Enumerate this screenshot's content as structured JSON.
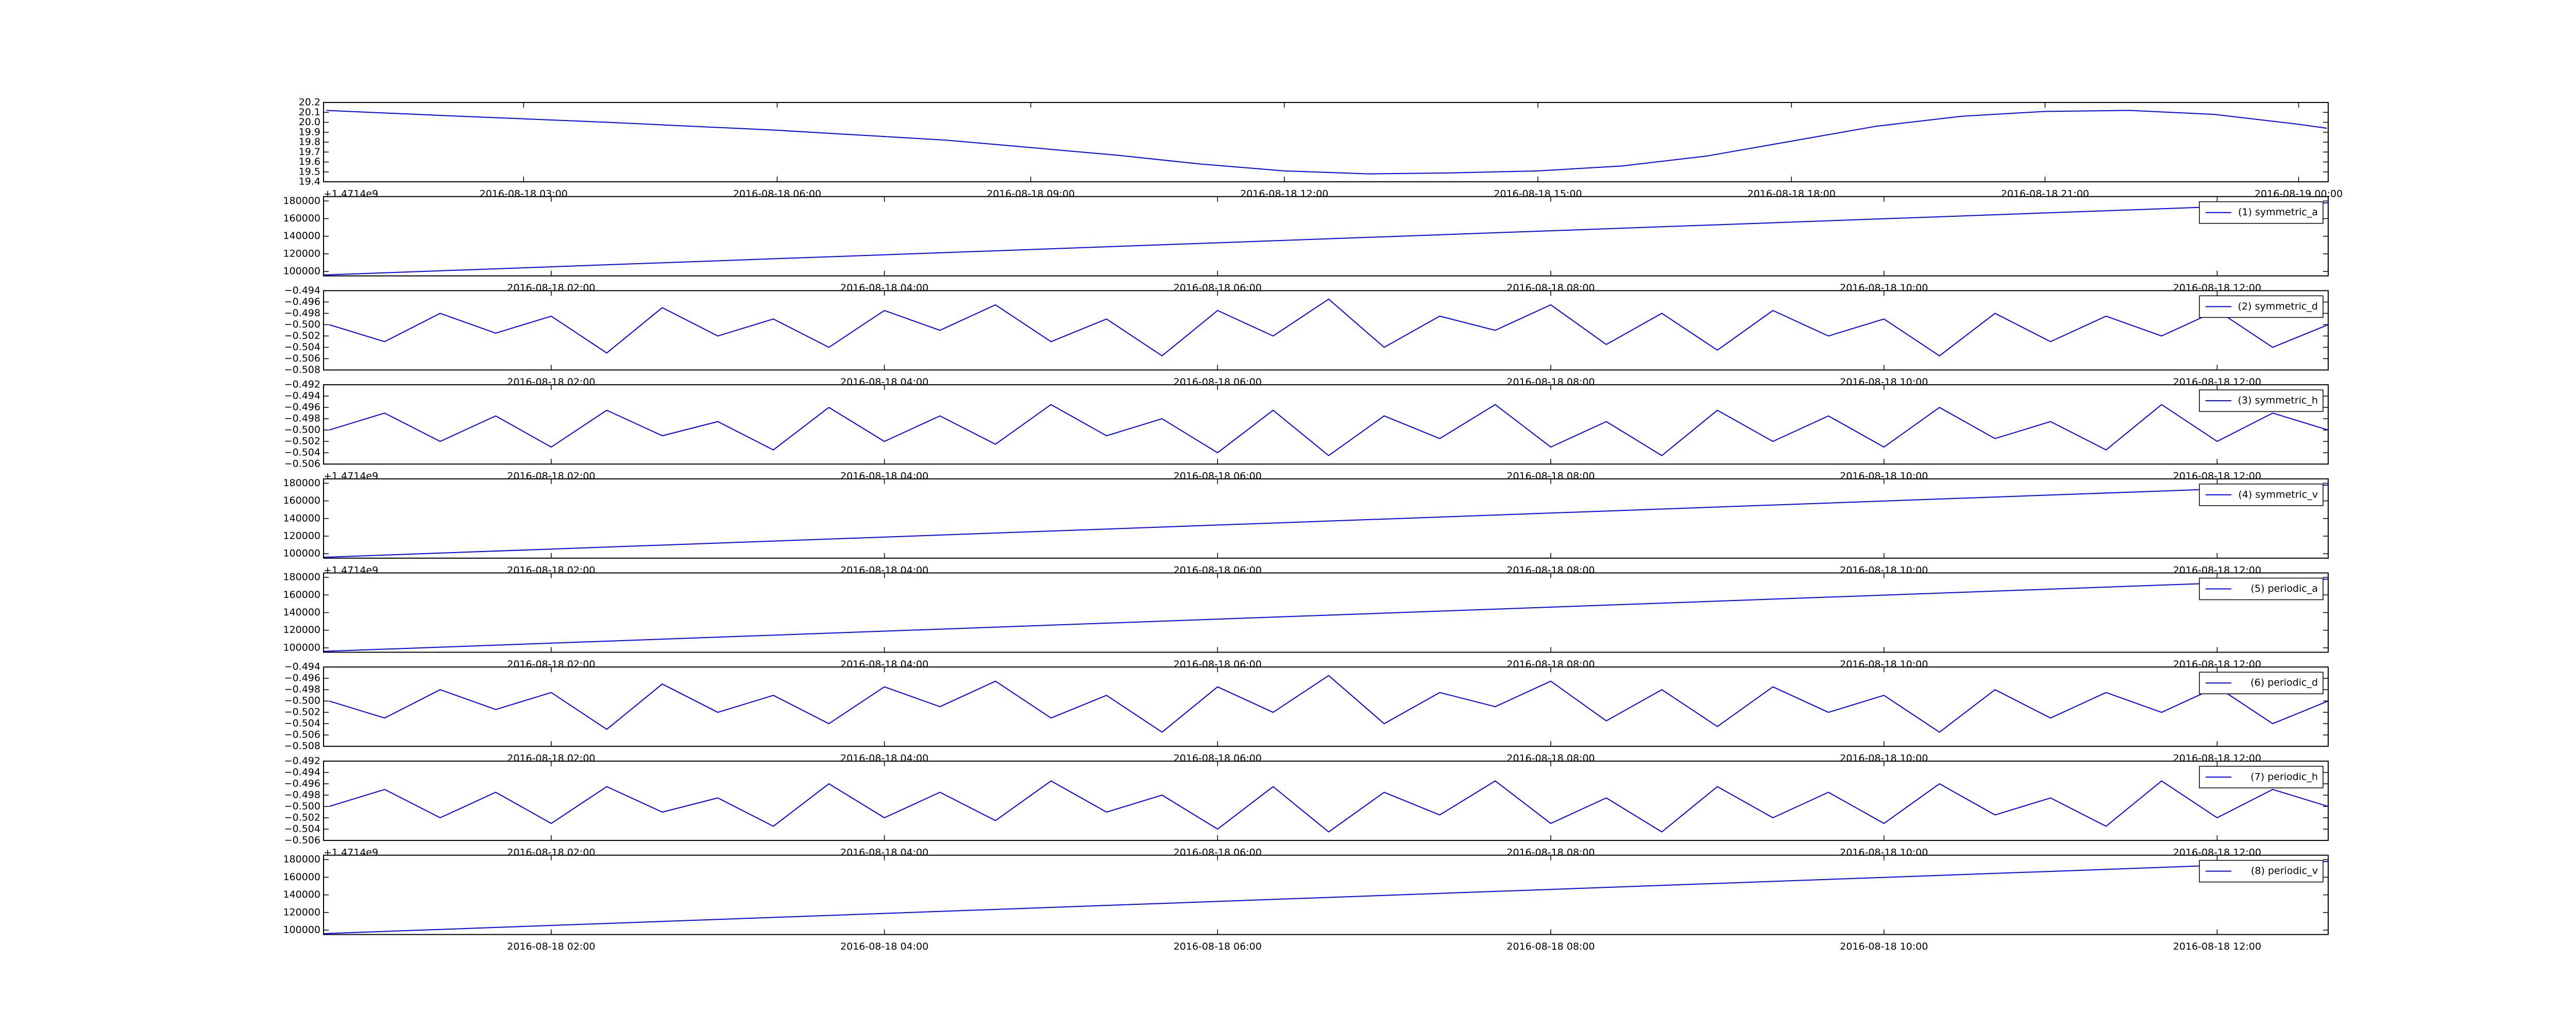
{
  "chart_data": [
    {
      "type": "line",
      "xlim": [
        "2016-08-18 00:38",
        "2016-08-19 00:21"
      ],
      "ylim": [
        19.4,
        20.2
      ],
      "yticks": [
        19.4,
        19.5,
        19.6,
        19.7,
        19.8,
        19.9,
        {
          "value": 20,
          "label": "20.0"
        },
        20.1,
        20.2
      ],
      "xticks": [
        "2016-08-18 03:00",
        "2016-08-18 06:00",
        "2016-08-18 09:00",
        "2016-08-18 12:00",
        "2016-08-18 15:00",
        "2016-08-18 18:00",
        "2016-08-18 21:00",
        "2016-08-19 00:00"
      ],
      "offset_text": "+1.4714e9",
      "series": [
        {
          "color": "#0000ff",
          "x": [
            "2016-08-18 00:40",
            "2016-08-18 02:00",
            "2016-08-18 04:00",
            "2016-08-18 06:00",
            "2016-08-18 08:00",
            "2016-08-18 10:00",
            "2016-08-18 11:00",
            "2016-08-18 12:00",
            "2016-08-18 13:00",
            "2016-08-18 14:00",
            "2016-08-18 15:00",
            "2016-08-18 16:00",
            "2016-08-18 17:00",
            "2016-08-18 18:00",
            "2016-08-18 19:00",
            "2016-08-18 20:00",
            "2016-08-18 21:00",
            "2016-08-18 22:00",
            "2016-08-18 23:00",
            "2016-08-19 00:00",
            "2016-08-19 00:20"
          ],
          "values": [
            20.12,
            20.07,
            20.0,
            19.92,
            19.82,
            19.67,
            19.58,
            19.51,
            19.48,
            19.49,
            19.51,
            19.56,
            19.66,
            19.81,
            19.96,
            20.06,
            20.11,
            20.12,
            20.08,
            19.98,
            19.94
          ]
        }
      ]
    },
    {
      "type": "line",
      "xlim": [
        "2016-08-18 00:38",
        "2016-08-18 12:40"
      ],
      "ylim": [
        95000,
        185000
      ],
      "yticks": [
        100000,
        120000,
        140000,
        160000,
        180000
      ],
      "xticks": [
        "2016-08-18 02:00",
        "2016-08-18 04:00",
        "2016-08-18 06:00",
        "2016-08-18 08:00",
        "2016-08-18 10:00",
        "2016-08-18 12:00"
      ],
      "legend": "upper right",
      "series": [
        {
          "name": "(1) symmetric_a",
          "color": "#0000ff",
          "x": [
            "2016-08-18 00:38",
            "2016-08-18 12:40"
          ],
          "values": [
            96000,
            178000
          ]
        }
      ]
    },
    {
      "type": "line",
      "xlim": [
        "2016-08-18 00:38",
        "2016-08-18 12:40"
      ],
      "ylim": [
        -0.508,
        -0.494
      ],
      "yticks": [
        {
          "value": -0.508,
          "label": "−0.508"
        },
        {
          "value": -0.506,
          "label": "−0.506"
        },
        {
          "value": -0.504,
          "label": "−0.504"
        },
        {
          "value": -0.502,
          "label": "−0.502"
        },
        {
          "value": -0.5,
          "label": "−0.500"
        },
        {
          "value": -0.498,
          "label": "−0.498"
        },
        {
          "value": -0.496,
          "label": "−0.496"
        },
        {
          "value": -0.494,
          "label": "−0.494"
        }
      ],
      "xticks": [
        "2016-08-18 02:00",
        "2016-08-18 04:00",
        "2016-08-18 06:00",
        "2016-08-18 08:00",
        "2016-08-18 10:00",
        "2016-08-18 12:00"
      ],
      "legend": "upper right",
      "series": [
        {
          "name": "(2) symmetric_d",
          "color": "#0000ff",
          "x": [
            "2016-08-18 00:40",
            "2016-08-18 01:00",
            "2016-08-18 01:20",
            "2016-08-18 01:40",
            "2016-08-18 02:00",
            "2016-08-18 02:20",
            "2016-08-18 02:40",
            "2016-08-18 03:00",
            "2016-08-18 03:20",
            "2016-08-18 03:40",
            "2016-08-18 04:00",
            "2016-08-18 04:20",
            "2016-08-18 04:40",
            "2016-08-18 05:00",
            "2016-08-18 05:20",
            "2016-08-18 05:40",
            "2016-08-18 06:00",
            "2016-08-18 06:20",
            "2016-08-18 06:40",
            "2016-08-18 07:00",
            "2016-08-18 07:20",
            "2016-08-18 07:40",
            "2016-08-18 08:00",
            "2016-08-18 08:20",
            "2016-08-18 08:40",
            "2016-08-18 09:00",
            "2016-08-18 09:20",
            "2016-08-18 09:40",
            "2016-08-18 10:00",
            "2016-08-18 10:20",
            "2016-08-18 10:40",
            "2016-08-18 11:00",
            "2016-08-18 11:20",
            "2016-08-18 11:40",
            "2016-08-18 12:00",
            "2016-08-18 12:20",
            "2016-08-18 12:40"
          ],
          "values": [
            -0.5,
            -0.503,
            -0.498,
            -0.5015,
            -0.4985,
            -0.505,
            -0.497,
            -0.502,
            -0.499,
            -0.504,
            -0.4975,
            -0.501,
            -0.4965,
            -0.503,
            -0.499,
            -0.5055,
            -0.4975,
            -0.502,
            -0.4955,
            -0.504,
            -0.4985,
            -0.501,
            -0.4965,
            -0.5035,
            -0.498,
            -0.5045,
            -0.4975,
            -0.502,
            -0.499,
            -0.5055,
            -0.498,
            -0.503,
            -0.4985,
            -0.502,
            -0.4975,
            -0.504,
            -0.5
          ]
        }
      ]
    },
    {
      "type": "line",
      "xlim": [
        "2016-08-18 00:38",
        "2016-08-18 12:40"
      ],
      "ylim": [
        -0.506,
        -0.492
      ],
      "yticks": [
        {
          "value": -0.506,
          "label": "−0.506"
        },
        {
          "value": -0.504,
          "label": "−0.504"
        },
        {
          "value": -0.502,
          "label": "−0.502"
        },
        {
          "value": -0.5,
          "label": "−0.500"
        },
        {
          "value": -0.498,
          "label": "−0.498"
        },
        {
          "value": -0.496,
          "label": "−0.496"
        },
        {
          "value": -0.494,
          "label": "−0.494"
        },
        {
          "value": -0.492,
          "label": "−0.492"
        }
      ],
      "xticks": [
        "2016-08-18 02:00",
        "2016-08-18 04:00",
        "2016-08-18 06:00",
        "2016-08-18 08:00",
        "2016-08-18 10:00",
        "2016-08-18 12:00"
      ],
      "legend": "upper right",
      "offset_text": "+1.4714e9",
      "series": [
        {
          "name": "(3) symmetric_h",
          "color": "#0000ff",
          "x": [
            "2016-08-18 00:40",
            "2016-08-18 01:00",
            "2016-08-18 01:20",
            "2016-08-18 01:40",
            "2016-08-18 02:00",
            "2016-08-18 02:20",
            "2016-08-18 02:40",
            "2016-08-18 03:00",
            "2016-08-18 03:20",
            "2016-08-18 03:40",
            "2016-08-18 04:00",
            "2016-08-18 04:20",
            "2016-08-18 04:40",
            "2016-08-18 05:00",
            "2016-08-18 05:20",
            "2016-08-18 05:40",
            "2016-08-18 06:00",
            "2016-08-18 06:20",
            "2016-08-18 06:40",
            "2016-08-18 07:00",
            "2016-08-18 07:20",
            "2016-08-18 07:40",
            "2016-08-18 08:00",
            "2016-08-18 08:20",
            "2016-08-18 08:40",
            "2016-08-18 09:00",
            "2016-08-18 09:20",
            "2016-08-18 09:40",
            "2016-08-18 10:00",
            "2016-08-18 10:20",
            "2016-08-18 10:40",
            "2016-08-18 11:00",
            "2016-08-18 11:20",
            "2016-08-18 11:40",
            "2016-08-18 12:00",
            "2016-08-18 12:20",
            "2016-08-18 12:40"
          ],
          "values": [
            -0.5,
            -0.497,
            -0.502,
            -0.4975,
            -0.503,
            -0.4965,
            -0.501,
            -0.4985,
            -0.5035,
            -0.496,
            -0.502,
            -0.4975,
            -0.5025,
            -0.4955,
            -0.501,
            -0.498,
            -0.504,
            -0.4965,
            -0.5045,
            -0.4975,
            -0.5015,
            -0.4955,
            -0.503,
            -0.4985,
            -0.5045,
            -0.4965,
            -0.502,
            -0.4975,
            -0.503,
            -0.496,
            -0.5015,
            -0.4985,
            -0.5035,
            -0.4955,
            -0.502,
            -0.497,
            -0.5
          ]
        }
      ]
    },
    {
      "type": "line",
      "xlim": [
        "2016-08-18 00:38",
        "2016-08-18 12:40"
      ],
      "ylim": [
        95000,
        185000
      ],
      "yticks": [
        100000,
        120000,
        140000,
        160000,
        180000
      ],
      "xticks": [
        "2016-08-18 02:00",
        "2016-08-18 04:00",
        "2016-08-18 06:00",
        "2016-08-18 08:00",
        "2016-08-18 10:00",
        "2016-08-18 12:00"
      ],
      "legend": "upper right",
      "offset_text": "+1.4714e9",
      "series": [
        {
          "name": "(4) symmetric_v",
          "color": "#0000ff",
          "x": [
            "2016-08-18 00:38",
            "2016-08-18 12:40"
          ],
          "values": [
            96000,
            178000
          ]
        }
      ]
    },
    {
      "type": "line",
      "xlim": [
        "2016-08-18 00:38",
        "2016-08-18 12:40"
      ],
      "ylim": [
        95000,
        185000
      ],
      "yticks": [
        100000,
        120000,
        140000,
        160000,
        180000
      ],
      "xticks": [
        "2016-08-18 02:00",
        "2016-08-18 04:00",
        "2016-08-18 06:00",
        "2016-08-18 08:00",
        "2016-08-18 10:00",
        "2016-08-18 12:00"
      ],
      "legend": "upper right",
      "series": [
        {
          "name": "(5) periodic_a",
          "color": "#0000ff",
          "x": [
            "2016-08-18 00:38",
            "2016-08-18 12:40"
          ],
          "values": [
            96000,
            178000
          ]
        }
      ]
    },
    {
      "type": "line",
      "xlim": [
        "2016-08-18 00:38",
        "2016-08-18 12:40"
      ],
      "ylim": [
        -0.508,
        -0.494
      ],
      "yticks": [
        {
          "value": -0.508,
          "label": "−0.508"
        },
        {
          "value": -0.506,
          "label": "−0.506"
        },
        {
          "value": -0.504,
          "label": "−0.504"
        },
        {
          "value": -0.502,
          "label": "−0.502"
        },
        {
          "value": -0.5,
          "label": "−0.500"
        },
        {
          "value": -0.498,
          "label": "−0.498"
        },
        {
          "value": -0.496,
          "label": "−0.496"
        },
        {
          "value": -0.494,
          "label": "−0.494"
        }
      ],
      "xticks": [
        "2016-08-18 02:00",
        "2016-08-18 04:00",
        "2016-08-18 06:00",
        "2016-08-18 08:00",
        "2016-08-18 10:00",
        "2016-08-18 12:00"
      ],
      "legend": "upper right",
      "series": [
        {
          "name": "(6) periodic_d",
          "color": "#0000ff",
          "x": [
            "2016-08-18 00:40",
            "2016-08-18 01:00",
            "2016-08-18 01:20",
            "2016-08-18 01:40",
            "2016-08-18 02:00",
            "2016-08-18 02:20",
            "2016-08-18 02:40",
            "2016-08-18 03:00",
            "2016-08-18 03:20",
            "2016-08-18 03:40",
            "2016-08-18 04:00",
            "2016-08-18 04:20",
            "2016-08-18 04:40",
            "2016-08-18 05:00",
            "2016-08-18 05:20",
            "2016-08-18 05:40",
            "2016-08-18 06:00",
            "2016-08-18 06:20",
            "2016-08-18 06:40",
            "2016-08-18 07:00",
            "2016-08-18 07:20",
            "2016-08-18 07:40",
            "2016-08-18 08:00",
            "2016-08-18 08:20",
            "2016-08-18 08:40",
            "2016-08-18 09:00",
            "2016-08-18 09:20",
            "2016-08-18 09:40",
            "2016-08-18 10:00",
            "2016-08-18 10:20",
            "2016-08-18 10:40",
            "2016-08-18 11:00",
            "2016-08-18 11:20",
            "2016-08-18 11:40",
            "2016-08-18 12:00",
            "2016-08-18 12:20",
            "2016-08-18 12:40"
          ],
          "values": [
            -0.5,
            -0.503,
            -0.498,
            -0.5015,
            -0.4985,
            -0.505,
            -0.497,
            -0.502,
            -0.499,
            -0.504,
            -0.4975,
            -0.501,
            -0.4965,
            -0.503,
            -0.499,
            -0.5055,
            -0.4975,
            -0.502,
            -0.4955,
            -0.504,
            -0.4985,
            -0.501,
            -0.4965,
            -0.5035,
            -0.498,
            -0.5045,
            -0.4975,
            -0.502,
            -0.499,
            -0.5055,
            -0.498,
            -0.503,
            -0.4985,
            -0.502,
            -0.4975,
            -0.504,
            -0.5
          ]
        }
      ]
    },
    {
      "type": "line",
      "xlim": [
        "2016-08-18 00:38",
        "2016-08-18 12:40"
      ],
      "ylim": [
        -0.506,
        -0.492
      ],
      "yticks": [
        {
          "value": -0.506,
          "label": "−0.506"
        },
        {
          "value": -0.504,
          "label": "−0.504"
        },
        {
          "value": -0.502,
          "label": "−0.502"
        },
        {
          "value": -0.5,
          "label": "−0.500"
        },
        {
          "value": -0.498,
          "label": "−0.498"
        },
        {
          "value": -0.496,
          "label": "−0.496"
        },
        {
          "value": -0.494,
          "label": "−0.494"
        },
        {
          "value": -0.492,
          "label": "−0.492"
        }
      ],
      "xticks": [
        "2016-08-18 02:00",
        "2016-08-18 04:00",
        "2016-08-18 06:00",
        "2016-08-18 08:00",
        "2016-08-18 10:00",
        "2016-08-18 12:00"
      ],
      "legend": "upper right",
      "offset_text": "+1.4714e9",
      "series": [
        {
          "name": "(7) periodic_h",
          "color": "#0000ff",
          "x": [
            "2016-08-18 00:40",
            "2016-08-18 01:00",
            "2016-08-18 01:20",
            "2016-08-18 01:40",
            "2016-08-18 02:00",
            "2016-08-18 02:20",
            "2016-08-18 02:40",
            "2016-08-18 03:00",
            "2016-08-18 03:20",
            "2016-08-18 03:40",
            "2016-08-18 04:00",
            "2016-08-18 04:20",
            "2016-08-18 04:40",
            "2016-08-18 05:00",
            "2016-08-18 05:20",
            "2016-08-18 05:40",
            "2016-08-18 06:00",
            "2016-08-18 06:20",
            "2016-08-18 06:40",
            "2016-08-18 07:00",
            "2016-08-18 07:20",
            "2016-08-18 07:40",
            "2016-08-18 08:00",
            "2016-08-18 08:20",
            "2016-08-18 08:40",
            "2016-08-18 09:00",
            "2016-08-18 09:20",
            "2016-08-18 09:40",
            "2016-08-18 10:00",
            "2016-08-18 10:20",
            "2016-08-18 10:40",
            "2016-08-18 11:00",
            "2016-08-18 11:20",
            "2016-08-18 11:40",
            "2016-08-18 12:00",
            "2016-08-18 12:20",
            "2016-08-18 12:40"
          ],
          "values": [
            -0.5,
            -0.497,
            -0.502,
            -0.4975,
            -0.503,
            -0.4965,
            -0.501,
            -0.4985,
            -0.5035,
            -0.496,
            -0.502,
            -0.4975,
            -0.5025,
            -0.4955,
            -0.501,
            -0.498,
            -0.504,
            -0.4965,
            -0.5045,
            -0.4975,
            -0.5015,
            -0.4955,
            -0.503,
            -0.4985,
            -0.5045,
            -0.4965,
            -0.502,
            -0.4975,
            -0.503,
            -0.496,
            -0.5015,
            -0.4985,
            -0.5035,
            -0.4955,
            -0.502,
            -0.497,
            -0.5
          ]
        }
      ]
    },
    {
      "type": "line",
      "xlim": [
        "2016-08-18 00:38",
        "2016-08-18 12:40"
      ],
      "ylim": [
        95000,
        185000
      ],
      "yticks": [
        100000,
        120000,
        140000,
        160000,
        180000
      ],
      "xticks": [
        "2016-08-18 02:00",
        "2016-08-18 04:00",
        "2016-08-18 06:00",
        "2016-08-18 08:00",
        "2016-08-18 10:00",
        "2016-08-18 12:00"
      ],
      "legend": "upper right",
      "series": [
        {
          "name": "(8) periodic_v",
          "color": "#0000ff",
          "x": [
            "2016-08-18 00:38",
            "2016-08-18 12:40"
          ],
          "values": [
            96000,
            178000
          ]
        }
      ]
    }
  ]
}
